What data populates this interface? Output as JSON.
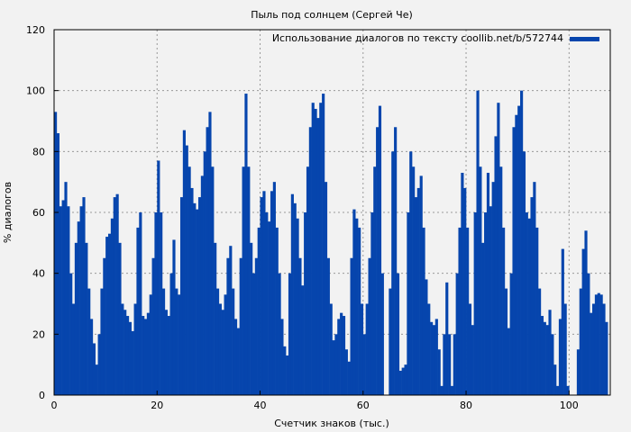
{
  "chart_data": {
    "type": "area",
    "title": "Пыль под солнцем (Сергей Че)",
    "xlabel": "Счетчик знаков (тыс.)",
    "ylabel": "% диалогов",
    "xlim": [
      0,
      108
    ],
    "ylim": [
      0,
      120
    ],
    "xticks": [
      0,
      20,
      40,
      60,
      80,
      100
    ],
    "yticks": [
      0,
      20,
      40,
      60,
      80,
      100,
      120
    ],
    "grid": true,
    "legend_position": "top-right",
    "series": [
      {
        "name": "Использование диалогов по тексту coollib.net/b/572744",
        "color": "#0645ad",
        "x_start": 0,
        "x_step": 0.5,
        "values": [
          93,
          86,
          62,
          64,
          70,
          62,
          40,
          30,
          50,
          57,
          62,
          65,
          50,
          35,
          25,
          17,
          10,
          20,
          35,
          45,
          52,
          53,
          58,
          65,
          66,
          50,
          30,
          28,
          26,
          24,
          21,
          30,
          55,
          60,
          26,
          25,
          27,
          33,
          45,
          60,
          77,
          60,
          35,
          28,
          26,
          40,
          51,
          35,
          33,
          65,
          87,
          82,
          75,
          68,
          63,
          61,
          65,
          72,
          80,
          88,
          93,
          75,
          50,
          35,
          30,
          28,
          33,
          45,
          49,
          35,
          25,
          22,
          45,
          75,
          99,
          75,
          50,
          40,
          45,
          55,
          65,
          67,
          60,
          57,
          67,
          70,
          55,
          40,
          25,
          16,
          13,
          40,
          66,
          63,
          58,
          45,
          36,
          60,
          75,
          88,
          96,
          94,
          91,
          96,
          99,
          70,
          45,
          30,
          18,
          20,
          25,
          27,
          26,
          15,
          11,
          45,
          61,
          58,
          55,
          30,
          20,
          30,
          45,
          60,
          75,
          88,
          95,
          40,
          0,
          0,
          35,
          80,
          88,
          40,
          8,
          9,
          10,
          60,
          80,
          75,
          65,
          68,
          72,
          55,
          38,
          30,
          24,
          23,
          25,
          15,
          3,
          20,
          37,
          20,
          3,
          20,
          40,
          55,
          73,
          68,
          55,
          30,
          23,
          60,
          100,
          75,
          50,
          60,
          73,
          62,
          70,
          85,
          96,
          75,
          55,
          35,
          22,
          40,
          88,
          92,
          95,
          100,
          80,
          60,
          58,
          65,
          70,
          55,
          35,
          26,
          24,
          23,
          28,
          20,
          10,
          3,
          25,
          48,
          30,
          3,
          0,
          0,
          0,
          15,
          35,
          48,
          54,
          40,
          27,
          30,
          33,
          33.5,
          33,
          30,
          24
        ]
      }
    ]
  }
}
